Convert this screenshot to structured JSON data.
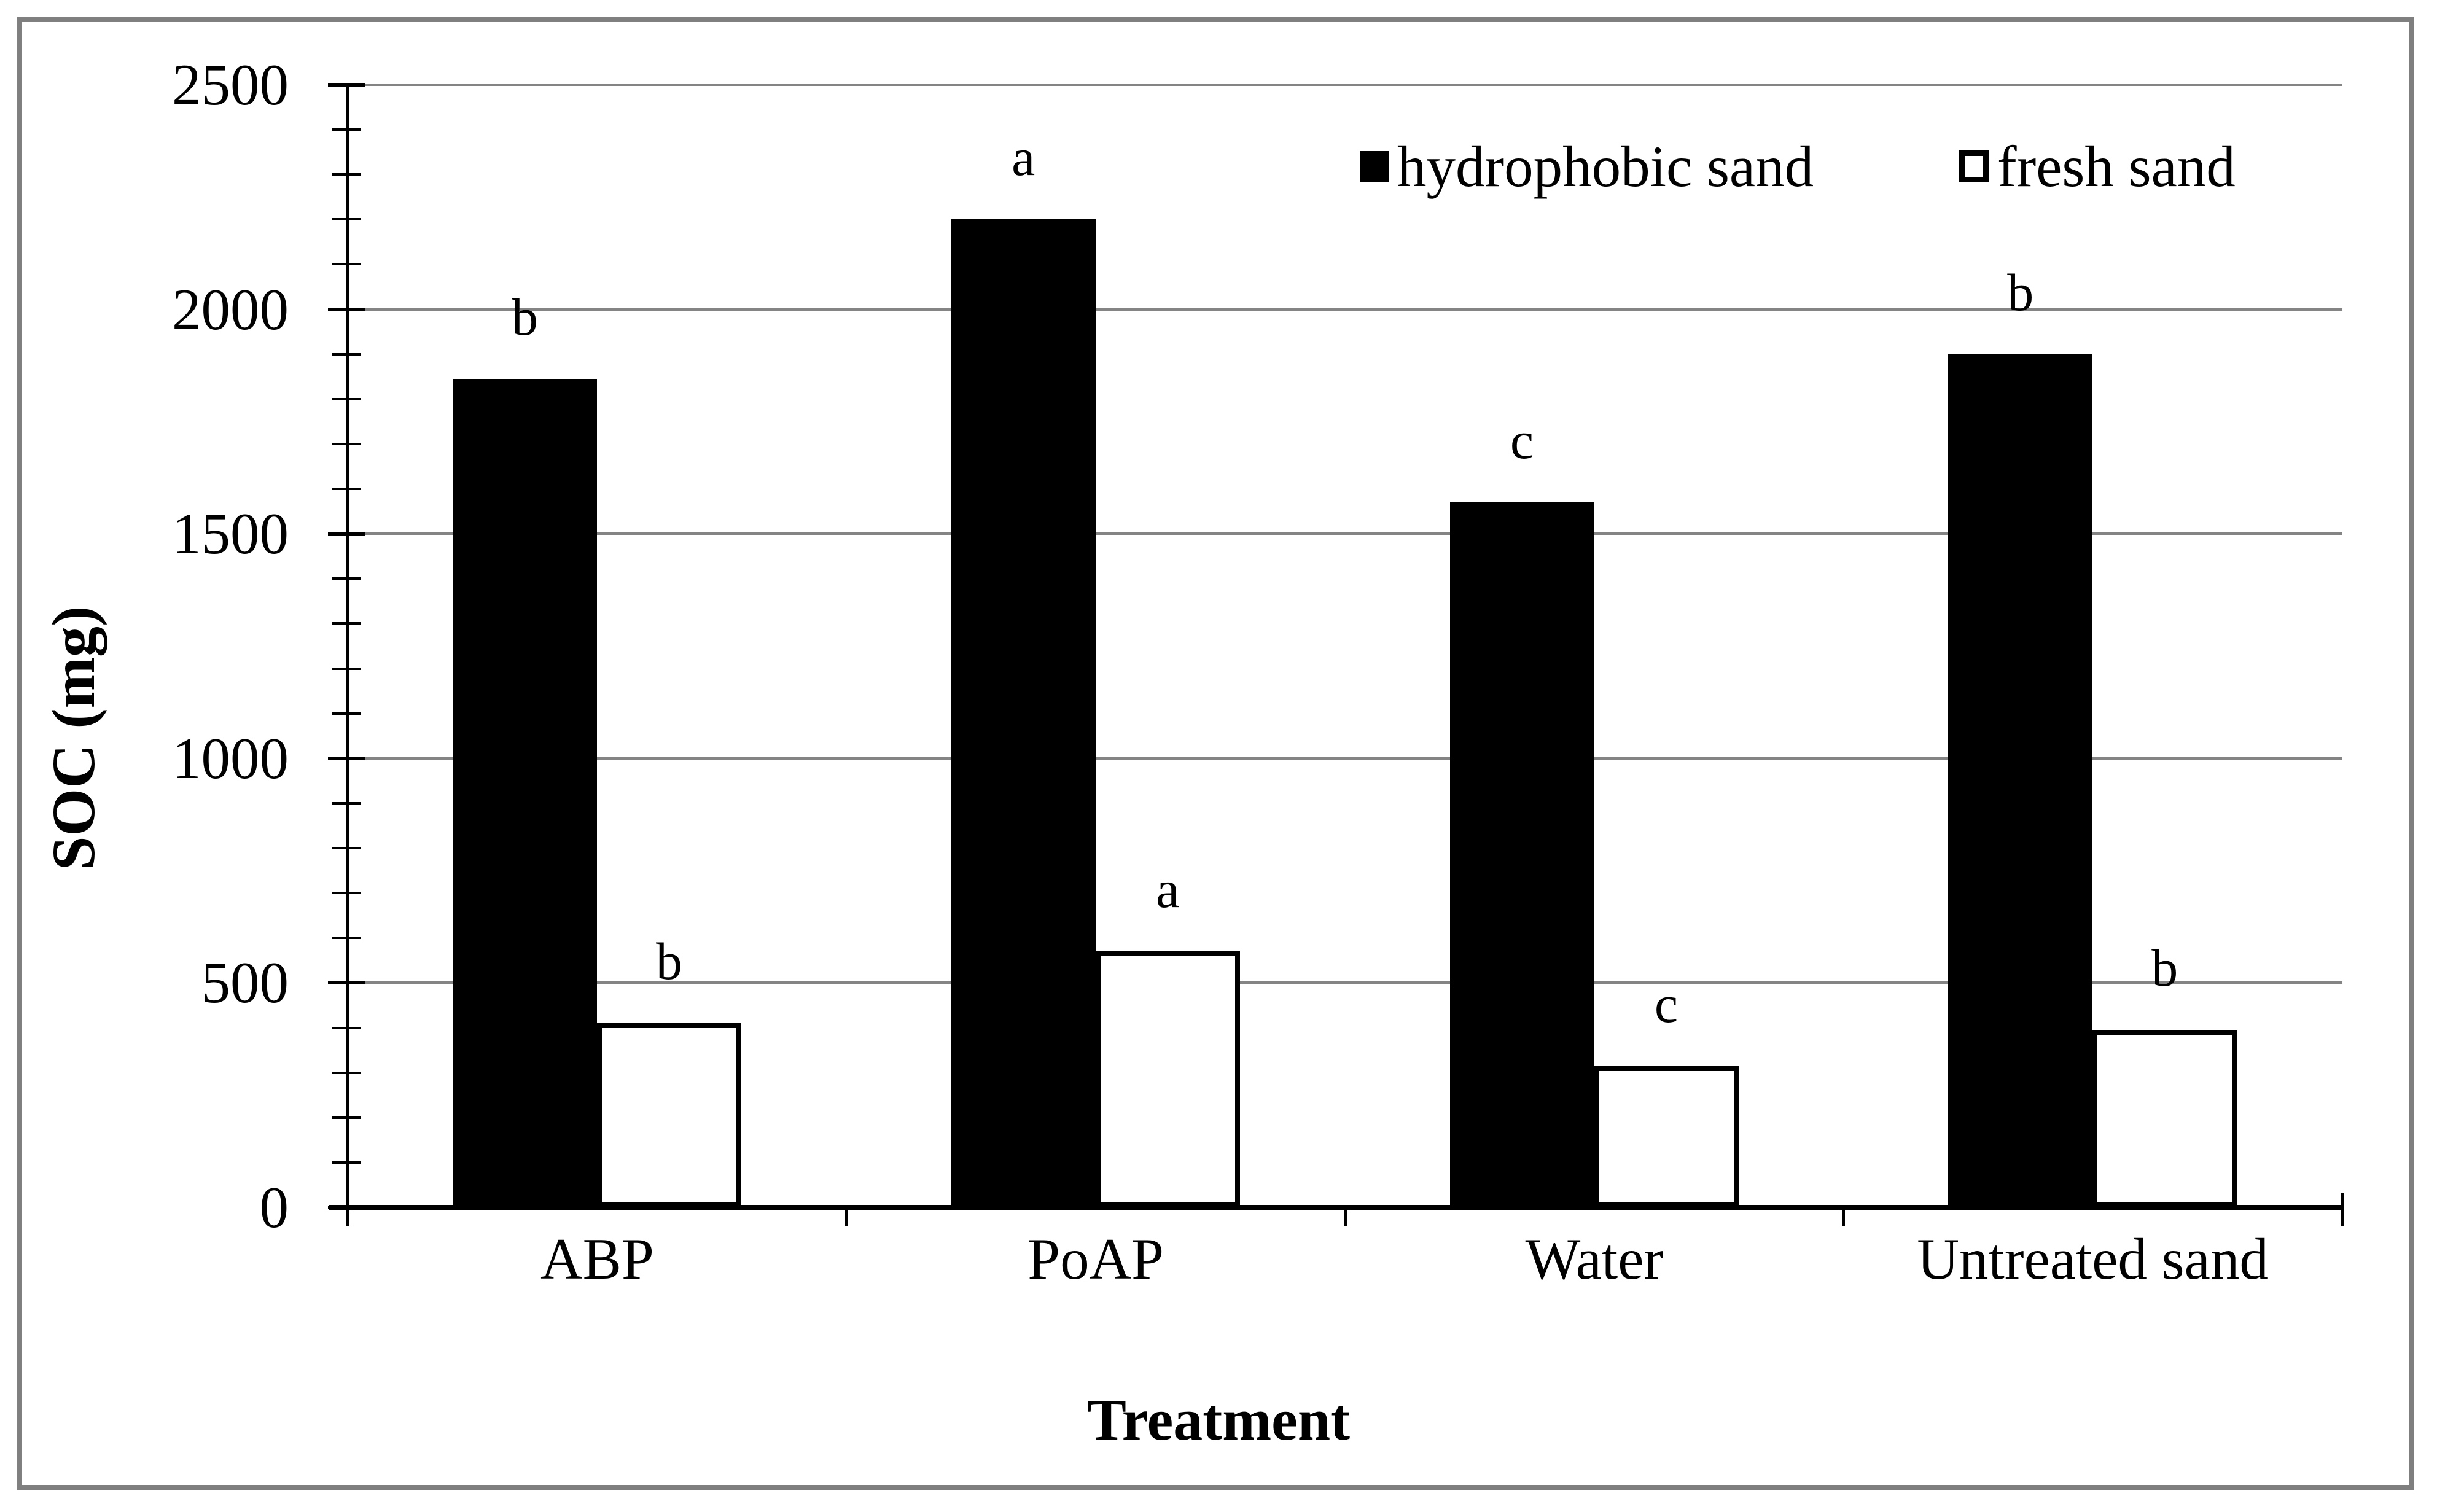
{
  "figure": {
    "background": "#ffffff",
    "border_color": "#7f7f7f"
  },
  "chart_data": {
    "type": "bar",
    "title": "",
    "xlabel": "Treatment",
    "ylabel": "SOC (mg)",
    "categories": [
      "ABP",
      "PoAP",
      "Water",
      "Untreated sand"
    ],
    "series": [
      {
        "name": "hydrophobic sand",
        "fill": "#000000",
        "values": [
          1845,
          2200,
          1570,
          1900
        ],
        "letters": [
          "b",
          "a",
          "c",
          "b"
        ]
      },
      {
        "name": "fresh sand",
        "fill": "#ffffff",
        "values": [
          410,
          570,
          315,
          395
        ],
        "letters": [
          "b",
          "a",
          "c",
          "b"
        ]
      }
    ],
    "ylim": [
      0,
      2500
    ],
    "yticks": [
      0,
      500,
      1000,
      1500,
      2000,
      2500
    ],
    "y_minor_step": 100,
    "grid": "horizontal-major",
    "gridline_color": "#848484",
    "legend_position": "inside-top-right"
  }
}
